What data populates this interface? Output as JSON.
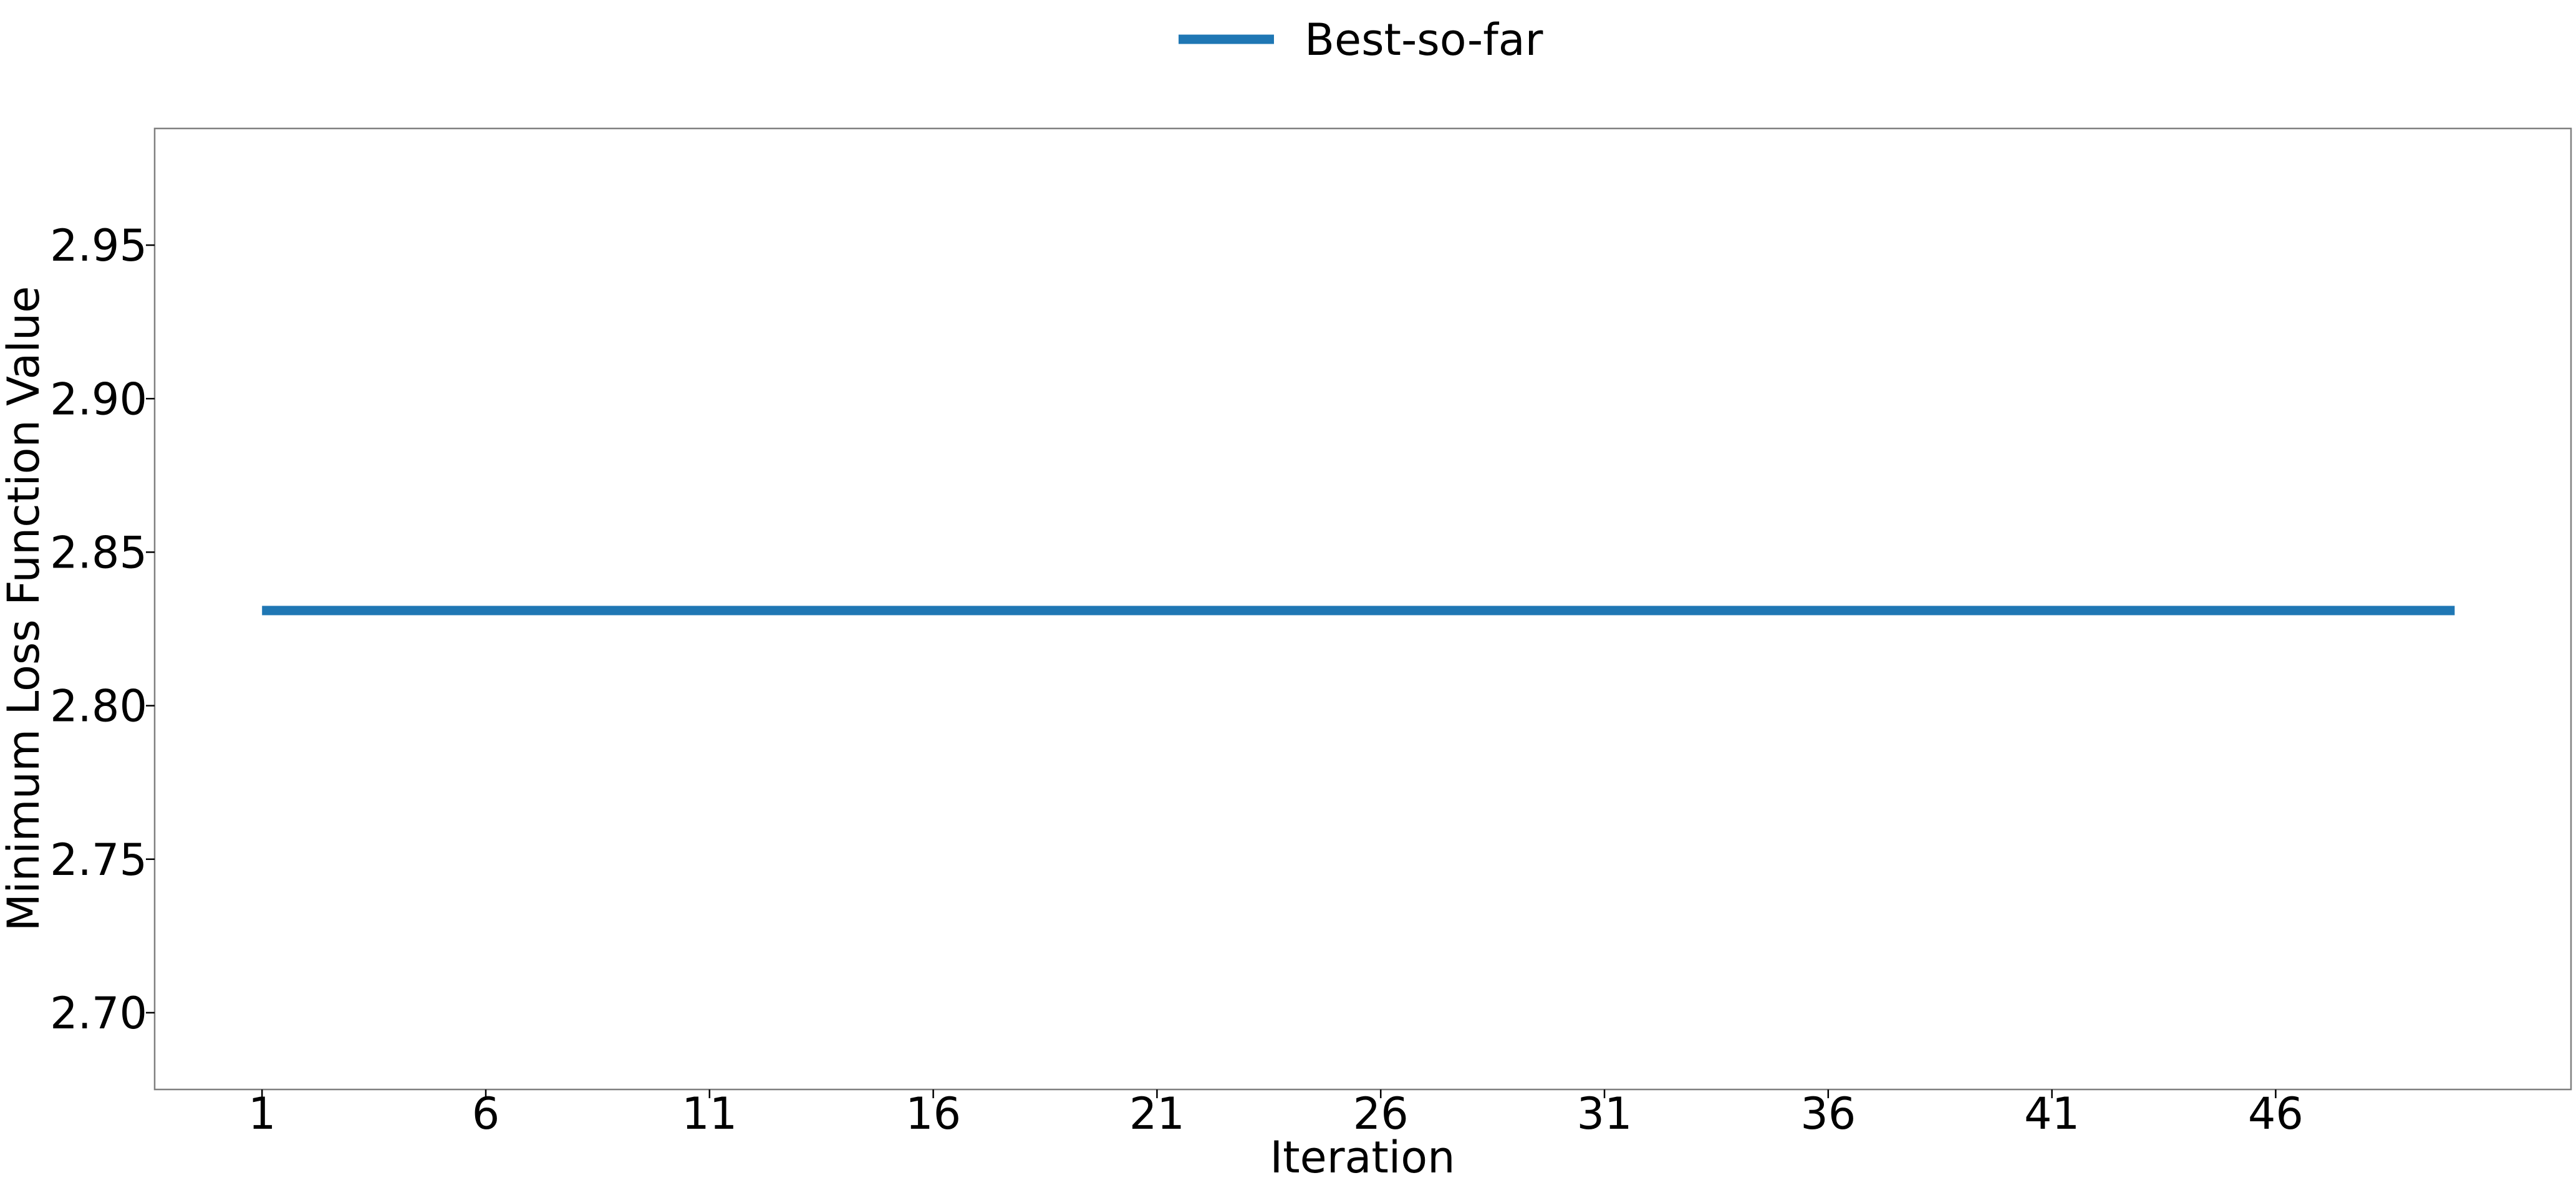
{
  "chart_data": {
    "type": "line",
    "xlabel": "Iteration",
    "ylabel": "Minimum Loss Function Value",
    "x_ticks": [
      1,
      6,
      11,
      16,
      21,
      26,
      31,
      36,
      41,
      46
    ],
    "y_ticks": [
      "2.70",
      "2.75",
      "2.80",
      "2.85",
      "2.90",
      "2.95"
    ],
    "xlim": [
      -1.4,
      52.6
    ],
    "ylim": [
      2.675,
      2.988
    ],
    "grid": false,
    "legend": {
      "placement": "top-center",
      "entries": [
        "Best-so-far"
      ]
    },
    "series": [
      {
        "name": "Best-so-far",
        "color": "#1f77b4",
        "x": [
          1,
          50
        ],
        "y": [
          2.831,
          2.831
        ]
      }
    ]
  }
}
